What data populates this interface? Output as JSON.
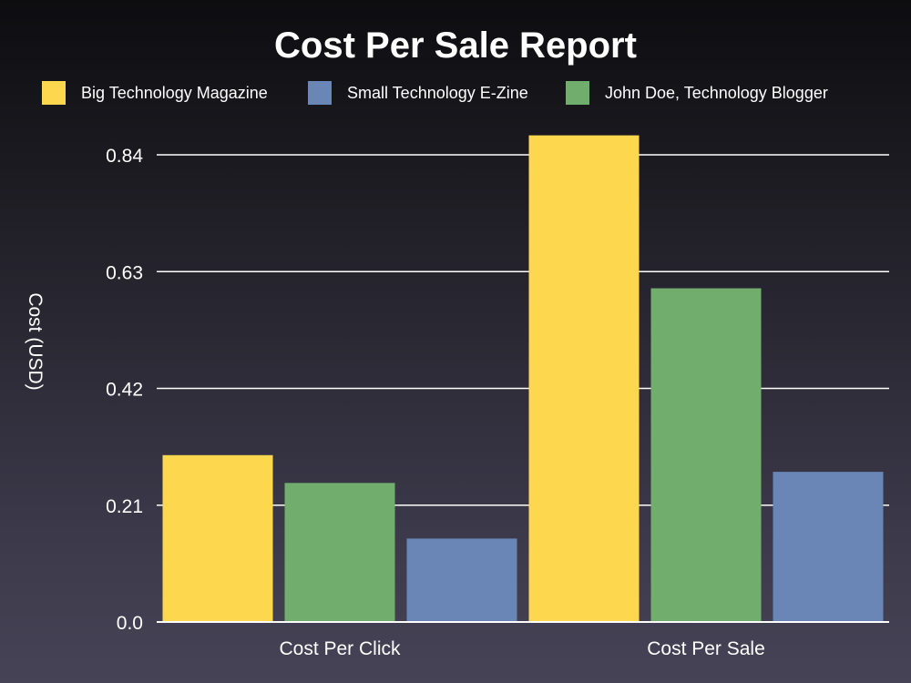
{
  "chart_data": {
    "type": "bar",
    "title": "Cost Per Sale Report",
    "xlabel": "",
    "ylabel": "Cost (USD)",
    "ylim": [
      0,
      0.84
    ],
    "yticks": [
      "0.0",
      "0.21",
      "0.42",
      "0.63",
      "0.84"
    ],
    "categories": [
      "Cost Per Click",
      "Cost Per Sale"
    ],
    "series": [
      {
        "name": "Big Technology Magazine",
        "color": "#fdd84e",
        "values": [
          0.3,
          0.875
        ]
      },
      {
        "name": "Small Technology E-Zine",
        "color": "#6986b7",
        "values": [
          0.15,
          0.27
        ]
      },
      {
        "name": "John Doe, Technology Blogger",
        "color": "#71ae6d",
        "values": [
          0.25,
          0.6
        ]
      }
    ],
    "bar_order": [
      [
        "Big Technology Magazine",
        "John Doe, Technology Blogger",
        "Small Technology E-Zine"
      ],
      [
        "Big Technology Magazine",
        "John Doe, Technology Blogger",
        "Small Technology E-Zine"
      ]
    ],
    "grid": true,
    "legend_position": "top"
  }
}
